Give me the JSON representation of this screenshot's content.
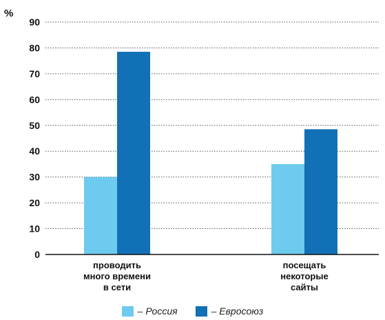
{
  "chart_data": {
    "type": "bar",
    "ylabel": "%",
    "ylim": [
      0,
      90
    ],
    "yticks": [
      0,
      10,
      20,
      30,
      40,
      50,
      60,
      70,
      80,
      90
    ],
    "grid": true,
    "legend_position": "bottom",
    "categories": [
      [
        "проводить",
        "много времени",
        "в сети"
      ],
      [
        "посещать",
        "некоторые",
        "сайты"
      ]
    ],
    "series": [
      {
        "name": "– Россия",
        "color": "#6ccbee",
        "values": [
          30,
          35
        ]
      },
      {
        "name": "– Евросоюз",
        "color": "#1270b6",
        "values": [
          78.5,
          48.5
        ]
      }
    ]
  }
}
